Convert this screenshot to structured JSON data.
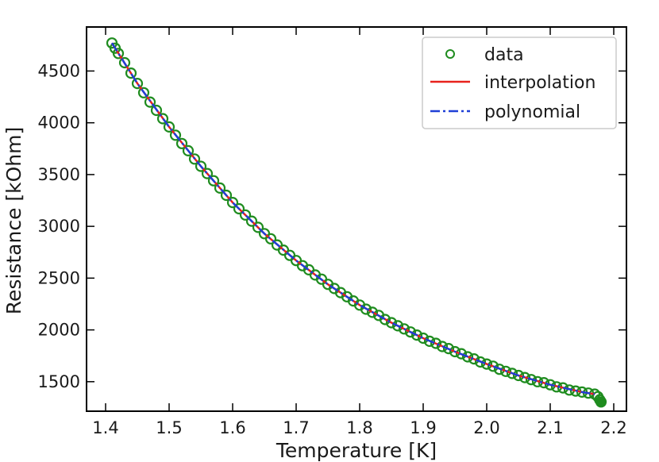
{
  "chart_data": {
    "type": "line",
    "title": "",
    "xlabel": "Temperature [K]",
    "ylabel": "Resistance [kOhm]",
    "xlim": [
      1.37,
      2.22
    ],
    "ylim": [
      1215,
      4925
    ],
    "xticks": [
      1.4,
      1.5,
      1.6,
      1.7,
      1.8,
      1.9,
      2.0,
      2.1,
      2.2
    ],
    "xtick_labels": [
      "1.4",
      "1.5",
      "1.6",
      "1.7",
      "1.8",
      "1.9",
      "2.0",
      "2.1",
      "2.2"
    ],
    "yticks": [
      1500,
      2000,
      2500,
      3000,
      3500,
      4000,
      4500
    ],
    "ytick_labels": [
      "1500",
      "2000",
      "2500",
      "3000",
      "3500",
      "4000",
      "4500"
    ],
    "grid": false,
    "legend_position": "top-right",
    "curve_points": {
      "x": [
        1.41,
        1.45,
        1.5,
        1.55,
        1.6,
        1.65,
        1.7,
        1.75,
        1.8,
        1.85,
        1.9,
        1.95,
        2.0,
        2.05,
        2.1,
        2.15,
        2.17
      ],
      "y": [
        4770,
        4380,
        3960,
        3580,
        3230,
        2930,
        2670,
        2440,
        2240,
        2070,
        1920,
        1790,
        1670,
        1560,
        1470,
        1400,
        1380
      ]
    },
    "series": [
      {
        "name": "data",
        "style": "markers",
        "marker": "open-circle",
        "color": "#1f8c1f",
        "x": [
          1.41,
          1.415,
          1.42,
          1.43,
          1.44,
          1.45,
          1.46,
          1.47,
          1.48,
          1.49,
          1.5,
          1.51,
          1.52,
          1.53,
          1.54,
          1.55,
          1.56,
          1.57,
          1.58,
          1.59,
          1.6,
          1.61,
          1.62,
          1.63,
          1.64,
          1.65,
          1.66,
          1.67,
          1.68,
          1.69,
          1.7,
          1.71,
          1.72,
          1.73,
          1.74,
          1.75,
          1.76,
          1.77,
          1.78,
          1.79,
          1.8,
          1.81,
          1.82,
          1.83,
          1.84,
          1.85,
          1.86,
          1.87,
          1.88,
          1.89,
          1.9,
          1.91,
          1.92,
          1.93,
          1.94,
          1.95,
          1.96,
          1.97,
          1.98,
          1.99,
          2.0,
          2.01,
          2.02,
          2.03,
          2.04,
          2.05,
          2.06,
          2.07,
          2.08,
          2.09,
          2.1,
          2.11,
          2.12,
          2.13,
          2.14,
          2.15,
          2.16,
          2.17,
          2.175,
          2.178,
          2.18
        ],
        "y": [
          4770,
          4720,
          4670,
          4580,
          4480,
          4380,
          4290,
          4200,
          4120,
          4040,
          3960,
          3880,
          3800,
          3730,
          3650,
          3580,
          3510,
          3440,
          3370,
          3300,
          3230,
          3170,
          3110,
          3050,
          2990,
          2930,
          2880,
          2820,
          2770,
          2720,
          2670,
          2620,
          2580,
          2530,
          2490,
          2440,
          2400,
          2360,
          2320,
          2280,
          2240,
          2200,
          2170,
          2140,
          2100,
          2070,
          2040,
          2010,
          1980,
          1950,
          1920,
          1890,
          1870,
          1840,
          1820,
          1790,
          1770,
          1740,
          1720,
          1690,
          1670,
          1650,
          1620,
          1600,
          1580,
          1560,
          1540,
          1520,
          1500,
          1490,
          1470,
          1450,
          1440,
          1420,
          1410,
          1400,
          1390,
          1380,
          1355,
          1325,
          1305
        ]
      },
      {
        "name": "interpolation",
        "style": "solid",
        "color": "#e8221c"
      },
      {
        "name": "polynomial",
        "style": "dashdot",
        "color": "#1f3fd6"
      }
    ]
  }
}
